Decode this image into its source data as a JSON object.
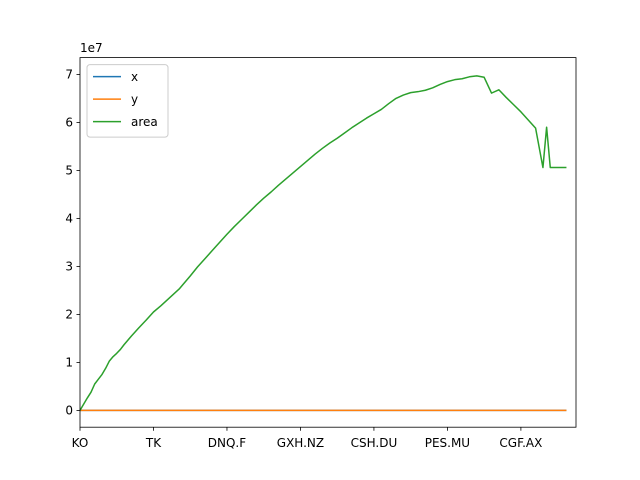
{
  "chart_data": {
    "type": "line",
    "title": "",
    "xlabel": "",
    "ylabel": "",
    "y_scale_label": "1e7",
    "x_tick_labels": [
      "KO",
      "TK",
      "DNQ.F",
      "GXH.NZ",
      "CSH.DU",
      "PES.MU",
      "CGF.AX"
    ],
    "x_index_range": [
      0,
      675
    ],
    "x_tick_positions": [
      0,
      100,
      200,
      300,
      400,
      500,
      600
    ],
    "ylim": [
      -3500000,
      73500000
    ],
    "y_ticks": [
      0,
      10000000,
      20000000,
      30000000,
      40000000,
      50000000,
      60000000,
      70000000
    ],
    "y_tick_labels": [
      "0",
      "1",
      "2",
      "3",
      "4",
      "5",
      "6",
      "7"
    ],
    "grid": false,
    "legend_position": "upper left",
    "series": [
      {
        "name": "x",
        "color": "#1f77b4",
        "x": [
          0,
          100,
          200,
          300,
          400,
          500,
          600,
          662
        ],
        "values": [
          100,
          100,
          100,
          100,
          100,
          100,
          100,
          100
        ]
      },
      {
        "name": "y",
        "color": "#ff7f0e",
        "x": [
          0,
          100,
          200,
          300,
          400,
          500,
          600,
          662
        ],
        "values": [
          100,
          100,
          100,
          100,
          100,
          100,
          100,
          100
        ]
      },
      {
        "name": "area",
        "color": "#2ca02c",
        "x": [
          0,
          5,
          10,
          15,
          20,
          25,
          30,
          35,
          40,
          45,
          50,
          55,
          60,
          70,
          80,
          90,
          100,
          110,
          120,
          130,
          135,
          140,
          150,
          160,
          170,
          180,
          190,
          200,
          210,
          220,
          230,
          240,
          250,
          260,
          270,
          280,
          290,
          300,
          310,
          320,
          330,
          340,
          350,
          360,
          370,
          380,
          390,
          400,
          410,
          420,
          430,
          440,
          450,
          460,
          470,
          480,
          490,
          500,
          510,
          520,
          530,
          540,
          550,
          560,
          570,
          580,
          590,
          600,
          610,
          620,
          630,
          635,
          640,
          645,
          648,
          650,
          652,
          654,
          656,
          658,
          660,
          661,
          662
        ],
        "values": [
          0,
          1300000,
          2600000,
          3800000,
          5500000,
          6500000,
          7500000,
          8800000,
          10300000,
          11200000,
          11900000,
          12700000,
          13700000,
          15500000,
          17200000,
          18800000,
          20500000,
          21800000,
          23200000,
          24600000,
          25300000,
          26200000,
          28000000,
          29900000,
          31600000,
          33300000,
          35000000,
          36700000,
          38300000,
          39800000,
          41300000,
          42800000,
          44200000,
          45500000,
          46900000,
          48200000,
          49500000,
          50800000,
          52100000,
          53400000,
          54600000,
          55700000,
          56700000,
          57800000,
          58900000,
          59900000,
          60900000,
          61800000,
          62700000,
          63900000,
          65000000,
          65700000,
          66200000,
          66400000,
          66700000,
          67200000,
          67900000,
          68500000,
          68900000,
          69100000,
          69500000,
          69700000,
          69400000,
          66100000,
          66800000,
          65200000,
          63700000,
          62200000,
          60500000,
          58800000,
          50600000,
          59000000,
          50600000,
          50600000,
          50600000,
          50600000,
          50600000,
          50600000,
          50600000,
          50600000,
          50600000,
          50600000,
          50600000
        ]
      }
    ]
  }
}
